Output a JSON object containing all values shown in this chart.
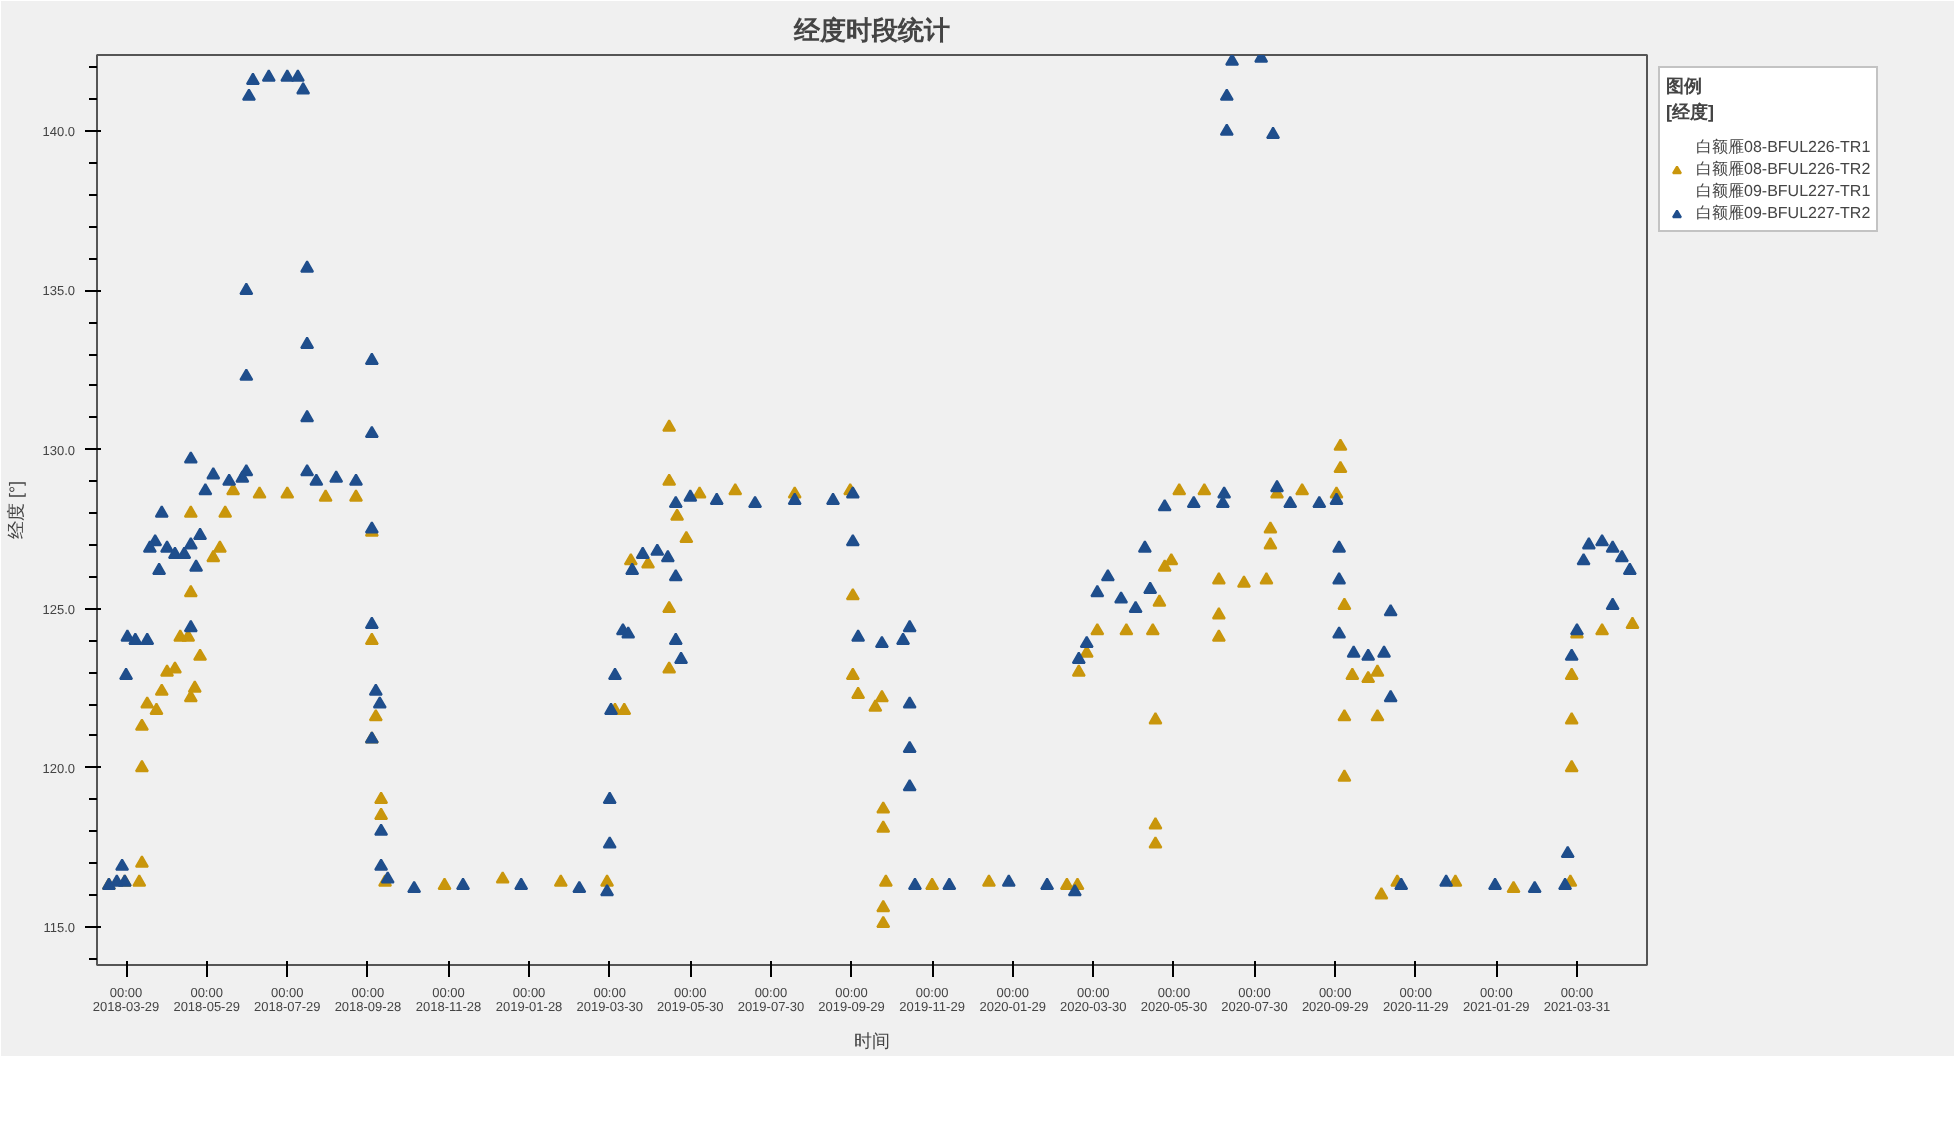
{
  "chart_data": {
    "type": "scatter",
    "title": "经度时段统计",
    "xlabel": "时间",
    "ylabel": "经度 [°]",
    "legend_title": "图例\n[经度]",
    "legend": "right",
    "marker": "triangle",
    "grid": false,
    "xlim": [
      "2018-03-07",
      "2021-05-23"
    ],
    "xticks": [
      {
        "value": "2018-03-29",
        "label": "00:00\n2018-03-29"
      },
      {
        "value": "2018-05-29",
        "label": "00:00\n2018-05-29"
      },
      {
        "value": "2018-07-29",
        "label": "00:00\n2018-07-29"
      },
      {
        "value": "2018-09-28",
        "label": "00:00\n2018-09-28"
      },
      {
        "value": "2018-11-28",
        "label": "00:00\n2018-11-28"
      },
      {
        "value": "2019-01-28",
        "label": "00:00\n2019-01-28"
      },
      {
        "value": "2019-03-30",
        "label": "00:00\n2019-03-30"
      },
      {
        "value": "2019-05-30",
        "label": "00:00\n2019-05-30"
      },
      {
        "value": "2019-07-30",
        "label": "00:00\n2019-07-30"
      },
      {
        "value": "2019-09-29",
        "label": "00:00\n2019-09-29"
      },
      {
        "value": "2019-11-29",
        "label": "00:00\n2019-11-29"
      },
      {
        "value": "2020-01-29",
        "label": "00:00\n2020-01-29"
      },
      {
        "value": "2020-03-30",
        "label": "00:00\n2020-03-30"
      },
      {
        "value": "2020-05-30",
        "label": "00:00\n2020-05-30"
      },
      {
        "value": "2020-07-30",
        "label": "00:00\n2020-07-30"
      },
      {
        "value": "2020-09-29",
        "label": "00:00\n2020-09-29"
      },
      {
        "value": "2020-11-29",
        "label": "00:00\n2020-11-29"
      },
      {
        "value": "2021-01-29",
        "label": "00:00\n2021-01-29"
      },
      {
        "value": "2021-03-31",
        "label": "00:00\n2021-03-31"
      }
    ],
    "ylim": [
      113.8,
      142.4
    ],
    "yticks": [
      {
        "value": 114,
        "label": null
      },
      {
        "value": 115,
        "label": "115.0"
      },
      {
        "value": 116,
        "label": null
      },
      {
        "value": 117,
        "label": null
      },
      {
        "value": 118,
        "label": null
      },
      {
        "value": 119,
        "label": null
      },
      {
        "value": 120,
        "label": "120.0"
      },
      {
        "value": 121,
        "label": null
      },
      {
        "value": 122,
        "label": null
      },
      {
        "value": 123,
        "label": null
      },
      {
        "value": 124,
        "label": null
      },
      {
        "value": 125,
        "label": "125.0"
      },
      {
        "value": 126,
        "label": null
      },
      {
        "value": 127,
        "label": null
      },
      {
        "value": 128,
        "label": null
      },
      {
        "value": 129,
        "label": null
      },
      {
        "value": 130,
        "label": "130.0"
      },
      {
        "value": 131,
        "label": null
      },
      {
        "value": 132,
        "label": null
      },
      {
        "value": 133,
        "label": null
      },
      {
        "value": 134,
        "label": null
      },
      {
        "value": 135,
        "label": "135.0"
      },
      {
        "value": 136,
        "label": null
      },
      {
        "value": 137,
        "label": null
      },
      {
        "value": 138,
        "label": null
      },
      {
        "value": 139,
        "label": null
      },
      {
        "value": 140,
        "label": "140.0"
      },
      {
        "value": 141,
        "label": null
      },
      {
        "value": 142,
        "label": null
      }
    ],
    "series": [
      {
        "name": "白额雁08-BFUL226-TR1"
      },
      {
        "name": "白额雁08-BFUL226-TR2",
        "color": "#c9960c",
        "x": [
          "2018-03-16",
          "2018-03-28",
          "2018-04-08",
          "2018-04-10",
          "2018-04-10",
          "2018-04-10",
          "2018-04-14",
          "2018-04-21",
          "2018-04-25",
          "2018-04-29",
          "2018-05-05",
          "2018-05-09",
          "2018-05-15",
          "2018-05-17",
          "2018-05-17",
          "2018-05-17",
          "2018-05-20",
          "2018-05-24",
          "2018-06-03",
          "2018-06-08",
          "2018-06-12",
          "2018-06-18",
          "2018-07-08",
          "2018-07-29",
          "2018-08-27",
          "2018-09-19",
          "2018-10-01",
          "2018-10-01",
          "2018-10-01",
          "2018-10-04",
          "2018-10-08",
          "2018-10-08",
          "2018-10-11",
          "2018-11-25",
          "2019-01-08",
          "2019-02-21",
          "2019-03-28",
          "2019-04-03",
          "2019-04-10",
          "2019-04-15",
          "2019-04-28",
          "2019-05-14",
          "2019-05-14",
          "2019-05-14",
          "2019-05-14",
          "2019-05-20",
          "2019-05-27",
          "2019-06-06",
          "2019-07-03",
          "2019-08-17",
          "2019-09-28",
          "2019-09-30",
          "2019-09-30",
          "2019-10-04",
          "2019-10-17",
          "2019-10-22",
          "2019-10-23",
          "2019-10-23",
          "2019-10-23",
          "2019-10-23",
          "2019-10-25",
          "2019-11-29",
          "2020-01-11",
          "2020-03-10",
          "2020-03-18",
          "2020-03-19",
          "2020-03-25",
          "2020-04-02",
          "2020-04-24",
          "2020-05-14",
          "2020-05-16",
          "2020-05-16",
          "2020-05-16",
          "2020-05-19",
          "2020-05-23",
          "2020-05-28",
          "2020-06-03",
          "2020-06-22",
          "2020-07-03",
          "2020-07-03",
          "2020-07-03",
          "2020-07-22",
          "2020-08-08",
          "2020-08-11",
          "2020-08-11",
          "2020-08-16",
          "2020-09-04",
          "2020-09-30",
          "2020-10-03",
          "2020-10-03",
          "2020-10-06",
          "2020-10-06",
          "2020-10-06",
          "2020-10-12",
          "2020-10-24",
          "2020-10-31",
          "2020-10-31",
          "2020-11-03",
          "2020-11-15",
          "2020-12-29",
          "2021-02-11",
          "2021-03-26",
          "2021-03-27",
          "2021-03-27",
          "2021-03-27",
          "2021-03-31",
          "2021-04-19",
          "2021-05-12"
        ],
        "values": [
          116.3,
          116.4,
          116.4,
          117.0,
          120.0,
          121.3,
          122.0,
          121.8,
          122.4,
          123.0,
          123.1,
          124.1,
          124.1,
          128.0,
          125.5,
          122.2,
          122.5,
          123.5,
          126.6,
          126.9,
          128.0,
          128.7,
          128.6,
          128.6,
          128.5,
          128.5,
          127.4,
          124.0,
          120.9,
          121.6,
          119.0,
          118.5,
          116.4,
          116.3,
          116.5,
          116.4,
          116.4,
          121.8,
          121.8,
          126.5,
          126.4,
          130.7,
          129.0,
          125.0,
          123.1,
          127.9,
          127.2,
          128.6,
          128.7,
          128.6,
          128.7,
          125.4,
          122.9,
          122.3,
          121.9,
          122.2,
          118.7,
          118.1,
          115.6,
          115.1,
          116.4,
          116.3,
          116.4,
          116.3,
          116.3,
          123.0,
          123.6,
          124.3,
          124.3,
          124.3,
          121.5,
          118.2,
          117.6,
          125.2,
          126.3,
          126.5,
          128.7,
          128.7,
          125.9,
          124.8,
          124.1,
          125.8,
          125.9,
          127.0,
          127.5,
          128.6,
          128.7,
          128.6,
          130.1,
          129.4,
          125.1,
          121.6,
          119.7,
          122.9,
          122.8,
          123.0,
          121.6,
          116.0,
          116.4,
          116.4,
          116.2,
          116.4,
          120.0,
          121.5,
          122.9,
          124.2,
          124.3,
          124.5
        ]
      },
      {
        "name": "白额雁09-BFUL227-TR1"
      },
      {
        "name": "白额雁09-BFUL227-TR2",
        "color": "#1f4e8c",
        "x": [
          "2018-03-16",
          "2018-03-22",
          "2018-03-26",
          "2018-03-28",
          "2018-03-29",
          "2018-03-30",
          "2018-04-05",
          "2018-04-14",
          "2018-04-16",
          "2018-04-20",
          "2018-04-23",
          "2018-04-25",
          "2018-04-29",
          "2018-05-05",
          "2018-05-12",
          "2018-05-17",
          "2018-05-17",
          "2018-05-17",
          "2018-05-21",
          "2018-05-24",
          "2018-05-28",
          "2018-06-03",
          "2018-06-15",
          "2018-06-25",
          "2018-06-28",
          "2018-06-28",
          "2018-06-28",
          "2018-06-30",
          "2018-07-03",
          "2018-07-15",
          "2018-07-29",
          "2018-08-06",
          "2018-08-10",
          "2018-08-13",
          "2018-08-13",
          "2018-08-13",
          "2018-08-13",
          "2018-08-20",
          "2018-09-04",
          "2018-09-19",
          "2018-10-01",
          "2018-10-01",
          "2018-10-01",
          "2018-10-01",
          "2018-10-01",
          "2018-10-04",
          "2018-10-07",
          "2018-10-08",
          "2018-10-08",
          "2018-10-13",
          "2018-11-02",
          "2018-12-09",
          "2019-01-22",
          "2019-03-07",
          "2019-03-28",
          "2019-03-30",
          "2019-03-30",
          "2019-03-31",
          "2019-04-03",
          "2019-04-09",
          "2019-04-13",
          "2019-04-16",
          "2019-04-24",
          "2019-05-05",
          "2019-05-13",
          "2019-05-19",
          "2019-05-19",
          "2019-05-19",
          "2019-05-23",
          "2019-05-30",
          "2019-06-19",
          "2019-07-18",
          "2019-08-17",
          "2019-09-15",
          "2019-09-30",
          "2019-09-30",
          "2019-10-04",
          "2019-10-22",
          "2019-11-07",
          "2019-11-12",
          "2019-11-12",
          "2019-11-12",
          "2019-11-12",
          "2019-11-16",
          "2019-12-12",
          "2020-01-26",
          "2020-02-24",
          "2020-03-16",
          "2020-03-19",
          "2020-03-25",
          "2020-04-02",
          "2020-04-10",
          "2020-04-20",
          "2020-05-01",
          "2020-05-08",
          "2020-05-12",
          "2020-05-23",
          "2020-06-14",
          "2020-07-06",
          "2020-07-07",
          "2020-07-09",
          "2020-07-09",
          "2020-07-13",
          "2020-08-04",
          "2020-08-13",
          "2020-08-16",
          "2020-08-26",
          "2020-09-17",
          "2020-09-30",
          "2020-10-02",
          "2020-10-02",
          "2020-10-02",
          "2020-10-13",
          "2020-10-24",
          "2020-11-05",
          "2020-11-10",
          "2020-11-10",
          "2020-11-18",
          "2020-12-22",
          "2021-01-28",
          "2021-02-27",
          "2021-03-22",
          "2021-03-24",
          "2021-03-27",
          "2021-03-31",
          "2021-04-05",
          "2021-04-09",
          "2021-04-19",
          "2021-04-27",
          "2021-04-27",
          "2021-05-04",
          "2021-05-10"
        ],
        "values": [
          116.3,
          116.4,
          116.9,
          116.4,
          122.9,
          124.1,
          124.0,
          124.0,
          126.9,
          127.1,
          126.2,
          128.0,
          126.9,
          126.7,
          126.7,
          129.7,
          124.4,
          127.0,
          126.3,
          127.3,
          128.7,
          129.2,
          129.0,
          129.1,
          135.0,
          132.3,
          129.3,
          141.1,
          141.6,
          141.7,
          141.7,
          141.7,
          141.3,
          135.7,
          133.3,
          131.0,
          129.3,
          129.0,
          129.1,
          129.0,
          132.8,
          130.5,
          127.5,
          124.5,
          120.9,
          122.4,
          122.0,
          118.0,
          116.9,
          116.5,
          116.2,
          116.3,
          116.3,
          116.2,
          116.1,
          119.0,
          117.6,
          121.8,
          122.9,
          124.3,
          124.2,
          126.2,
          126.7,
          126.8,
          126.6,
          128.3,
          126.0,
          124.0,
          123.4,
          128.5,
          128.4,
          128.3,
          128.4,
          128.4,
          128.6,
          127.1,
          124.1,
          123.9,
          124.0,
          124.4,
          122.0,
          120.6,
          119.4,
          116.3,
          116.3,
          116.4,
          116.3,
          116.1,
          123.4,
          123.9,
          125.5,
          126.0,
          125.3,
          125.0,
          126.9,
          125.6,
          128.2,
          128.3,
          128.3,
          128.6,
          141.1,
          140.0,
          142.2,
          142.3,
          139.9,
          128.8,
          128.3,
          128.3,
          128.4,
          126.9,
          125.9,
          124.2,
          123.6,
          123.5,
          123.6,
          124.9,
          122.2,
          116.3,
          116.4,
          116.3,
          116.2,
          116.3,
          117.3,
          123.5,
          124.3,
          126.5,
          127.0,
          127.1,
          126.9,
          125.1,
          126.6,
          126.2
        ]
      }
    ]
  }
}
